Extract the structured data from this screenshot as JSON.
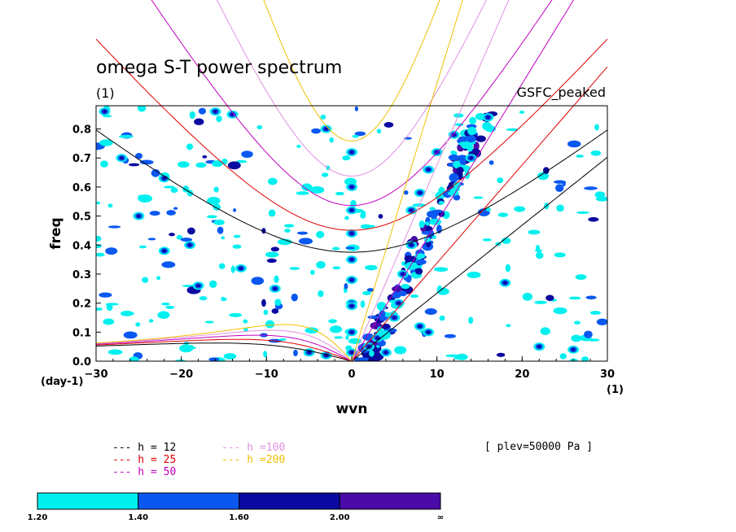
{
  "chart_data": {
    "type": "heatmap",
    "title": "omega S-T power spectrum",
    "subtitle_left": "(1)",
    "subtitle_right": "GSFC_peaked",
    "xlabel": "wvn",
    "ylabel": "freq",
    "y_unit": "(day-1)",
    "x_unit": "(1)",
    "xlim": [
      -30,
      30
    ],
    "ylim": [
      0,
      0.88
    ],
    "x_ticks": [
      -30,
      -20,
      -10,
      0,
      10,
      20,
      30
    ],
    "y_ticks": [
      0.0,
      0.1,
      0.2,
      0.3,
      0.4,
      0.5,
      0.6,
      0.7,
      0.8
    ],
    "annotation": "[ plev=50000 Pa ]",
    "dispersion_curves": [
      {
        "label": "h = 12",
        "color": "#000000"
      },
      {
        "label": "h = 25",
        "color": "#e00000"
      },
      {
        "label": "h = 50",
        "color": "#c000c0"
      },
      {
        "label": "h =100",
        "color": "#e090e0"
      },
      {
        "label": "h =200",
        "color": "#f0c000"
      }
    ],
    "colorbar": {
      "levels": [
        "1.20",
        "1.40",
        "1.60",
        "2.00",
        "∞"
      ],
      "colors": [
        "#00f0f0",
        "#0a58f0",
        "#0a0aa0",
        "#4a0aa8"
      ]
    },
    "features": [
      {
        "x": 0,
        "y": 0.72
      },
      {
        "x": 0,
        "y": 0.6
      },
      {
        "x": 0,
        "y": 0.52
      },
      {
        "x": 0,
        "y": 0.44
      },
      {
        "x": 0,
        "y": 0.35
      },
      {
        "x": 0,
        "y": 0.28
      },
      {
        "x": 0,
        "y": 0.2
      },
      {
        "x": 0,
        "y": 0.19
      },
      {
        "x": 0,
        "y": 0.1
      },
      {
        "x": 0,
        "y": 0.03
      },
      {
        "x": -5,
        "y": 0.03
      },
      {
        "x": -3,
        "y": 0.02
      },
      {
        "x": 2,
        "y": 0.05
      },
      {
        "x": 3,
        "y": 0.08
      },
      {
        "x": 4,
        "y": 0.03
      },
      {
        "x": 5,
        "y": 0.15
      },
      {
        "x": 5.5,
        "y": 0.2
      },
      {
        "x": 6,
        "y": 0.3
      },
      {
        "x": 7,
        "y": 0.4
      },
      {
        "x": 7,
        "y": 0.52
      },
      {
        "x": 8,
        "y": 0.58
      },
      {
        "x": 9,
        "y": 0.66
      },
      {
        "x": 10,
        "y": 0.72
      },
      {
        "x": 9,
        "y": 0.1
      },
      {
        "x": 8,
        "y": 0.12
      },
      {
        "x": 12,
        "y": 0.78
      },
      {
        "x": 16,
        "y": 0.84
      },
      {
        "x": 14,
        "y": 0.7
      },
      {
        "x": -29,
        "y": 0.86
      },
      {
        "x": -25,
        "y": 0.5
      },
      {
        "x": -22,
        "y": 0.38
      },
      {
        "x": -19,
        "y": 0.4
      },
      {
        "x": -16,
        "y": 0.86
      },
      {
        "x": -14,
        "y": 0.85
      },
      {
        "x": -13,
        "y": 0.32
      },
      {
        "x": -9,
        "y": 0.25
      },
      {
        "x": -22,
        "y": 0.63
      },
      {
        "x": -18,
        "y": 0.26
      },
      {
        "x": -3,
        "y": 0.8
      },
      {
        "x": 26,
        "y": 0.04
      },
      {
        "x": 18,
        "y": 0.27
      },
      {
        "x": -27,
        "y": 0.7
      },
      {
        "x": 22,
        "y": 0.05
      }
    ]
  }
}
